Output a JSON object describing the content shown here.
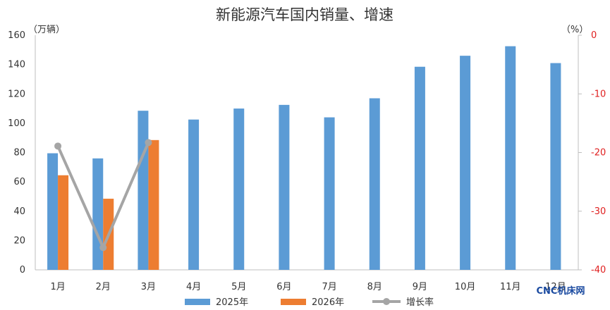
{
  "chart_data": {
    "type": "bar+line",
    "title": "新能源汽车国内销量、增速",
    "categories": [
      "1月",
      "2月",
      "3月",
      "4月",
      "5月",
      "6月",
      "7月",
      "8月",
      "9月",
      "10月",
      "11月",
      "12月"
    ],
    "series": [
      {
        "name": "2025年",
        "kind": "bar",
        "axis": "left",
        "color": "#5b9bd5",
        "values": [
          79.5,
          76,
          108.5,
          102.5,
          110,
          112.5,
          104,
          117,
          138.5,
          146,
          152.5,
          141
        ]
      },
      {
        "name": "2026年",
        "kind": "bar",
        "axis": "left",
        "color": "#ed7d31",
        "values": [
          64.5,
          48.5,
          88.5,
          null,
          null,
          null,
          null,
          null,
          null,
          null,
          null,
          null
        ]
      },
      {
        "name": "增长率",
        "kind": "line",
        "axis": "right",
        "color": "#a5a5a5",
        "values": [
          -18.9,
          -36.2,
          -18.3,
          null,
          null,
          null,
          null,
          null,
          null,
          null,
          null,
          null
        ]
      }
    ],
    "y_left": {
      "unit": "（万辆）",
      "ylim": [
        0,
        160
      ],
      "ticks": [
        0,
        20,
        40,
        60,
        80,
        100,
        120,
        140,
        160
      ],
      "tick_color": "#333333"
    },
    "y_right": {
      "unit": "（%）",
      "ylim": [
        -40,
        0
      ],
      "ticks": [
        0,
        -10,
        -20,
        -30,
        -40
      ],
      "tick_color": "#e02020"
    },
    "legend_position": "bottom",
    "grid": false
  },
  "watermark": "CNC机床网"
}
